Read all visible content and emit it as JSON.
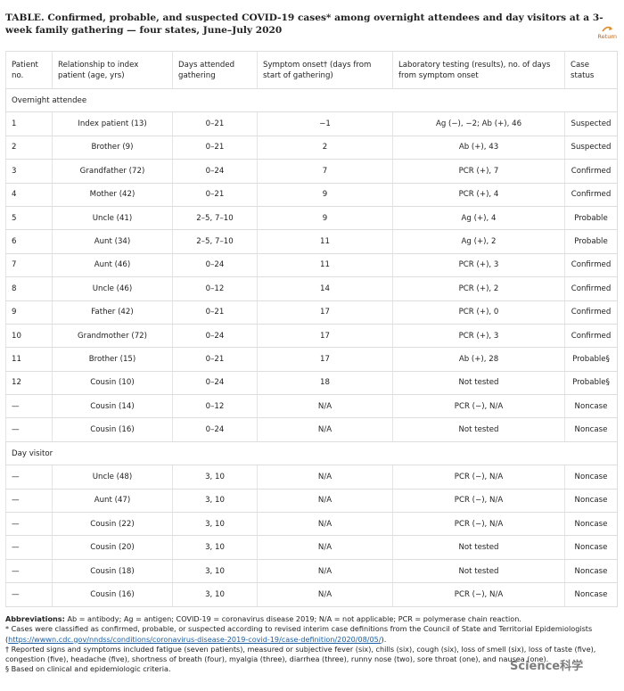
{
  "header": {
    "title": "TABLE. Confirmed, probable, and suspected COVID-19 cases* among overnight attendees and day visitors at a 3-week family gathering — four states, June–July 2020",
    "return_link": "Return"
  },
  "table": {
    "columns": [
      "Patient no.",
      "Relationship to index patient (age, yrs)",
      "Days attended gathering",
      "Symptom onset† (days from start of gathering)",
      "Laboratory testing (results), no. of days from symptom onset",
      "Case status"
    ],
    "sections": [
      {
        "label": "Overnight attendee",
        "rows": [
          [
            "1",
            "Index patient (13)",
            "0–21",
            "−1",
            "Ag (−), −2; Ab (+), 46",
            "Suspected"
          ],
          [
            "2",
            "Brother (9)",
            "0–21",
            "2",
            "Ab (+), 43",
            "Suspected"
          ],
          [
            "3",
            "Grandfather (72)",
            "0–24",
            "7",
            "PCR (+), 7",
            "Confirmed"
          ],
          [
            "4",
            "Mother (42)",
            "0–21",
            "9",
            "PCR (+), 4",
            "Confirmed"
          ],
          [
            "5",
            "Uncle (41)",
            "2–5, 7–10",
            "9",
            "Ag (+), 4",
            "Probable"
          ],
          [
            "6",
            "Aunt (34)",
            "2–5, 7–10",
            "11",
            "Ag (+), 2",
            "Probable"
          ],
          [
            "7",
            "Aunt (46)",
            "0–24",
            "11",
            "PCR (+), 3",
            "Confirmed"
          ],
          [
            "8",
            "Uncle (46)",
            "0–12",
            "14",
            "PCR (+), 2",
            "Confirmed"
          ],
          [
            "9",
            "Father (42)",
            "0–21",
            "17",
            "PCR (+), 0",
            "Confirmed"
          ],
          [
            "10",
            "Grandmother (72)",
            "0–24",
            "17",
            "PCR (+), 3",
            "Confirmed"
          ],
          [
            "11",
            "Brother (15)",
            "0–21",
            "17",
            "Ab (+), 28",
            "Probable§"
          ],
          [
            "12",
            "Cousin (10)",
            "0–24",
            "18",
            "Not tested",
            "Probable§"
          ],
          [
            "—",
            "Cousin (14)",
            "0–12",
            "N/A",
            "PCR (−), N/A",
            "Noncase"
          ],
          [
            "—",
            "Cousin (16)",
            "0–24",
            "N/A",
            "Not tested",
            "Noncase"
          ]
        ]
      },
      {
        "label": "Day visitor",
        "rows": [
          [
            "—",
            "Uncle (48)",
            "3, 10",
            "N/A",
            "PCR (−), N/A",
            "Noncase"
          ],
          [
            "—",
            "Aunt (47)",
            "3, 10",
            "N/A",
            "PCR (−), N/A",
            "Noncase"
          ],
          [
            "—",
            "Cousin (22)",
            "3, 10",
            "N/A",
            "PCR (−), N/A",
            "Noncase"
          ],
          [
            "—",
            "Cousin (20)",
            "3, 10",
            "N/A",
            "Not tested",
            "Noncase"
          ],
          [
            "—",
            "Cousin (18)",
            "3, 10",
            "N/A",
            "Not tested",
            "Noncase"
          ],
          [
            "—",
            "Cousin (16)",
            "3, 10",
            "N/A",
            "PCR (−), N/A",
            "Noncase"
          ]
        ]
      }
    ]
  },
  "footnotes": {
    "abbreviations_label": "Abbreviations:",
    "abbreviations": "Ab = antibody; Ag = antigen; COVID-19 = coronavirus disease 2019; N/A = not applicable; PCR = polymerase chain reaction.",
    "notes": [
      "* Cases were classified as confirmed, probable, or suspected according to revised interim case definitions from the Council of State and Territorial Epidemiologists",
      "† Reported signs and symptoms included fatigue (seven patients), measured or subjective fever (six), chills (six), cough (six), loss of smell (six), loss of taste (five), congestion (five), headache (five), shortness of breath (four), myalgia (three), diarrhea (three), runny nose (two), sore throat (one), and nausea (one).",
      "§ Based on clinical and epidemiologic criteria."
    ],
    "link": "https://wwwn.cdc.gov/nndss/conditions/coronavirus-disease-2019-covid-19/case-definition/2020/08/05/"
  },
  "watermark": "Science科学"
}
